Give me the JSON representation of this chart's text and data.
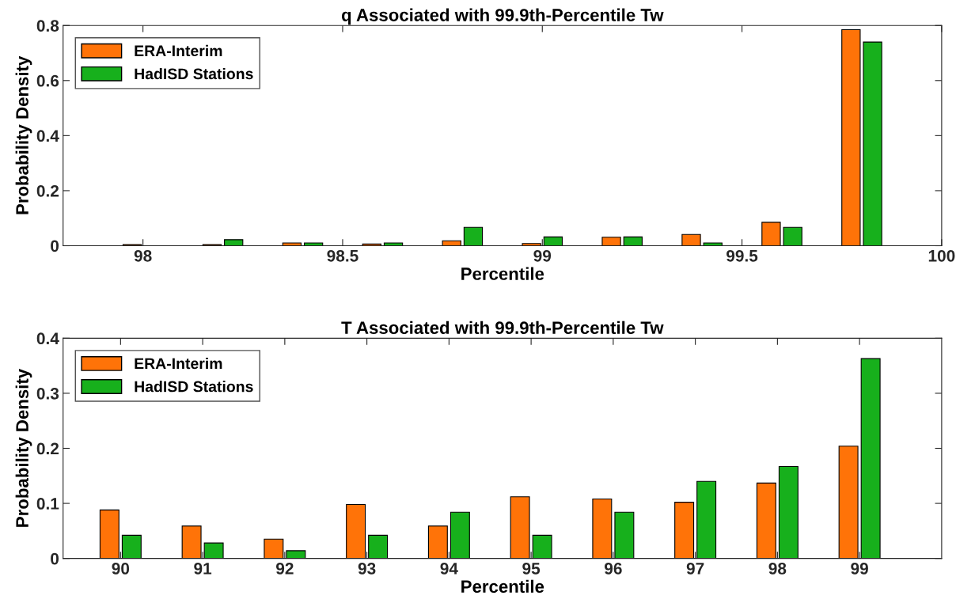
{
  "chart_data": [
    {
      "type": "bar",
      "title": "q Associated with 99.9th-Percentile Tw",
      "xlabel": "Percentile",
      "ylabel": "Probability Density",
      "x": [
        98.0,
        98.2,
        98.4,
        98.6,
        98.8,
        99.0,
        99.2,
        99.4,
        99.6,
        99.8
      ],
      "series": [
        {
          "name": "ERA-Interim",
          "color": "#ff7308",
          "values": [
            0.004,
            0.004,
            0.01,
            0.006,
            0.018,
            0.008,
            0.031,
            0.041,
            0.085,
            0.785
          ]
        },
        {
          "name": "HadISD Stations",
          "color": "#17b01c",
          "values": [
            null,
            0.022,
            0.01,
            0.01,
            0.067,
            0.032,
            0.032,
            0.01,
            0.067,
            0.74
          ]
        }
      ],
      "xlim": [
        97.8,
        100
      ],
      "xticks": [
        98,
        98.5,
        99,
        99.5,
        100
      ],
      "ylim": [
        0,
        0.8
      ],
      "yticks": [
        0,
        0.2,
        0.4,
        0.6,
        0.8
      ],
      "grid": false,
      "legend": "top left"
    },
    {
      "type": "bar",
      "title": "T Associated with 99.9th-Percentile Tw",
      "xlabel": "Percentile",
      "ylabel": "Probability Density",
      "x": [
        90,
        91,
        92,
        93,
        94,
        95,
        96,
        97,
        98,
        99
      ],
      "series": [
        {
          "name": "ERA-Interim",
          "color": "#ff7308",
          "values": [
            0.088,
            0.059,
            0.035,
            0.098,
            0.059,
            0.112,
            0.108,
            0.102,
            0.137,
            0.204
          ]
        },
        {
          "name": "HadISD Stations",
          "color": "#17b01c",
          "values": [
            0.042,
            0.028,
            0.014,
            0.042,
            0.084,
            0.042,
            0.084,
            0.14,
            0.167,
            0.363
          ]
        }
      ],
      "xlim": [
        89.3,
        100
      ],
      "xticks": [
        90,
        91,
        92,
        93,
        94,
        95,
        96,
        97,
        98,
        99
      ],
      "ylim": [
        0,
        0.4
      ],
      "yticks": [
        0,
        0.1,
        0.2,
        0.3,
        0.4
      ],
      "grid": false,
      "legend": "top left"
    }
  ]
}
